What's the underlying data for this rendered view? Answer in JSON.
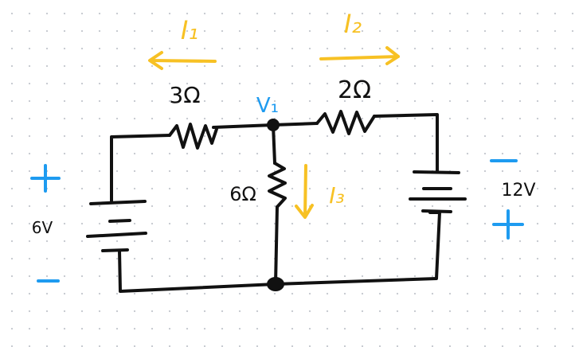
{
  "currents": {
    "i1": "I₁",
    "i2": "I₂",
    "i3": "I₃"
  },
  "resistors": {
    "r_left": "3Ω",
    "r_right": "2Ω",
    "r_mid": "6Ω"
  },
  "node": {
    "v1": "V₁"
  },
  "sources": {
    "left_voltage": "6V",
    "left_plus": "+",
    "left_minus": "−",
    "right_voltage": "12V",
    "right_minus": "−",
    "right_plus": "+"
  },
  "colors": {
    "wire": "#111111",
    "current_label": "#f7c124",
    "polarity": "#1e9bf0"
  }
}
